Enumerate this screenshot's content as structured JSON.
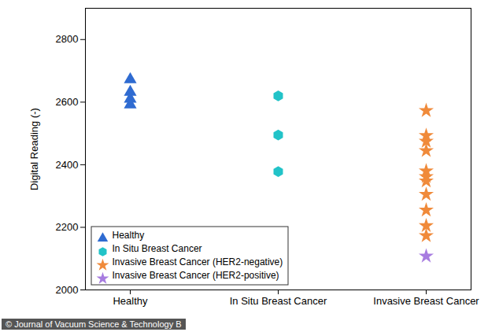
{
  "chart_data": {
    "type": "scatter",
    "ylabel": "Digital Reading (-)",
    "categories": [
      "Healthy",
      "In Situ Breast Cancer",
      "Invasive Breast Cancer"
    ],
    "ylim": [
      2000,
      2900
    ],
    "yticks": [
      2000,
      2200,
      2400,
      2600,
      2800
    ],
    "legend": "lower left",
    "source": "© Journal of Vacuum Science & Technology B",
    "series": [
      {
        "name": "Healthy",
        "color": "#2f6bd1",
        "marker": "triangle",
        "x": [
          "Healthy",
          "Healthy",
          "Healthy",
          "Healthy"
        ],
        "values": [
          2672,
          2632,
          2610,
          2592
        ]
      },
      {
        "name": "In Situ Breast Cancer",
        "color": "#22c3c8",
        "marker": "hexagon",
        "x": [
          "In Situ Breast Cancer",
          "In Situ Breast Cancer",
          "In Situ Breast Cancer"
        ],
        "values": [
          2620,
          2495,
          2378
        ]
      },
      {
        "name": "Invasive Breast Cancer (HER2-negative)",
        "color": "#f08a3a",
        "marker": "star",
        "x": [
          "Invasive Breast Cancer",
          "Invasive Breast Cancer",
          "Invasive Breast Cancer",
          "Invasive Breast Cancer",
          "Invasive Breast Cancer",
          "Invasive Breast Cancer",
          "Invasive Breast Cancer",
          "Invasive Breast Cancer",
          "Invasive Breast Cancer",
          "Invasive Breast Cancer",
          "Invasive Breast Cancer"
        ],
        "values": [
          2573,
          2493,
          2475,
          2445,
          2380,
          2362,
          2348,
          2305,
          2255,
          2205,
          2173
        ]
      },
      {
        "name": "Invasive Breast Cancer (HER2-positive)",
        "color": "#a77ce0",
        "marker": "star",
        "x": [
          "Invasive Breast Cancer"
        ],
        "values": [
          2108
        ]
      }
    ]
  }
}
